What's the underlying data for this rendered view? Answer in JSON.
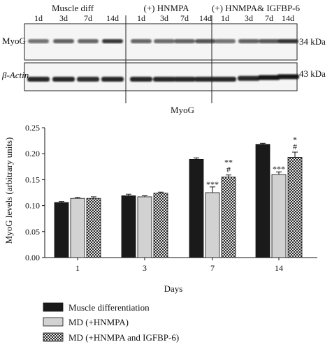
{
  "blot": {
    "group_labels": [
      "Muscle diff",
      "(+) HNMPA",
      "(+) HNMPA& IGFBP-6"
    ],
    "lane_labels": [
      "1d",
      "3d",
      "7d",
      "14d",
      "1d",
      "3d",
      "7d",
      "14d",
      "1d",
      "3d",
      "7d",
      "14d"
    ],
    "rows": [
      {
        "name": "MyoG",
        "kda": "34 kDa"
      },
      {
        "name": "β-Actin",
        "kda": "43 kDa"
      }
    ]
  },
  "chart_data": {
    "type": "bar",
    "title": "MyoG",
    "xlabel": "Days",
    "ylabel": "MyoG levels (arbitrary units)",
    "ylim": [
      0,
      0.25
    ],
    "yticks": [
      "0.00",
      "0.05",
      "0.10",
      "0.15",
      "0.20",
      "0.25"
    ],
    "categories": [
      "1",
      "3",
      "7",
      "14"
    ],
    "series": [
      {
        "name": "Muscle differentiation",
        "color": "#1a1a1a",
        "pattern": "solid-dark",
        "values": [
          0.106,
          0.119,
          0.189,
          0.218
        ],
        "errors": [
          0.002,
          0.003,
          0.003,
          0.002
        ],
        "annotations": [
          "",
          "",
          "",
          ""
        ]
      },
      {
        "name": "MD (+HNMPA)",
        "color": "#d2d2d2",
        "pattern": "solid-light",
        "values": [
          0.114,
          0.117,
          0.125,
          0.16
        ],
        "errors": [
          0.002,
          0.002,
          0.011,
          0.005
        ],
        "annotations": [
          "",
          "",
          "***",
          "***"
        ]
      },
      {
        "name": "MD (+HNMPA and IGFBP-6)",
        "color": "#7a7a7a",
        "pattern": "checker",
        "values": [
          0.114,
          0.124,
          0.155,
          0.193
        ],
        "errors": [
          0.003,
          0.002,
          0.004,
          0.01
        ],
        "annotations": [
          "",
          "",
          "**\n#",
          "*\n#"
        ]
      }
    ],
    "legend_position": "bottom-left"
  }
}
